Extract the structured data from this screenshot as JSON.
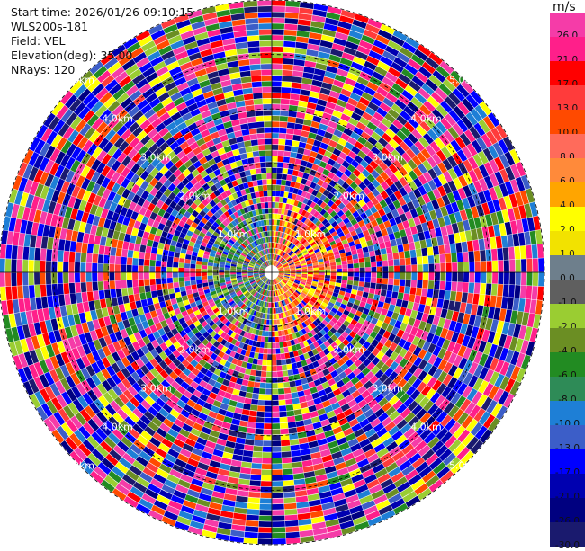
{
  "info": {
    "start_time": "Start time: 2026/01/26 09:10:15",
    "instrument": "WLS200s-181",
    "field": "Field: VEL",
    "elevation": "Elevation(deg): 35.00",
    "nrays": "NRays: 120"
  },
  "colorbar": {
    "unit": "m/s",
    "levels": [
      {
        "label": "26.0",
        "color": "#f53ca8"
      },
      {
        "label": "21.0",
        "color": "#ff1f8a"
      },
      {
        "label": "17.0",
        "color": "#ff0000"
      },
      {
        "label": "13.0",
        "color": "#ff3b3b"
      },
      {
        "label": "10.0",
        "color": "#ff4a00"
      },
      {
        "label": "8.0",
        "color": "#ff6b5b"
      },
      {
        "label": "6.0",
        "color": "#ff8a3a"
      },
      {
        "label": "4.0",
        "color": "#ffa500"
      },
      {
        "label": "2.0",
        "color": "#ffff00"
      },
      {
        "label": "1.0",
        "color": "#f2e200"
      },
      {
        "label": "0.0",
        "color": "#6e7f8c"
      },
      {
        "label": "-1.0",
        "color": "#5f5f5f"
      },
      {
        "label": "-2.0",
        "color": "#9acd32"
      },
      {
        "label": "-4.0",
        "color": "#6b8e23"
      },
      {
        "label": "-6.0",
        "color": "#228b22"
      },
      {
        "label": "-8.0",
        "color": "#2e8b57"
      },
      {
        "label": "-10.0",
        "color": "#1e7fd6"
      },
      {
        "label": "-13.0",
        "color": "#3c5ec8"
      },
      {
        "label": "-17.0",
        "color": "#0000ff"
      },
      {
        "label": "-21.0",
        "color": "#0000b0"
      },
      {
        "label": "-26.0",
        "color": "#000080"
      },
      {
        "label": "-30.0",
        "color": "#1a1a6e"
      }
    ]
  },
  "chart_data": {
    "type": "heatmap",
    "projection": "polar (PPI)",
    "field": "VEL",
    "units": "m/s",
    "nrays": 120,
    "elevation_deg": 35.0,
    "range_rings": [
      {
        "label": "1.0km"
      },
      {
        "label": "2.0km"
      },
      {
        "label": "3.0km"
      },
      {
        "label": "4.0km"
      },
      {
        "label": "5.0km"
      }
    ],
    "color_scale_min": -30.0,
    "color_scale_max": 26.0,
    "grid": true
  }
}
